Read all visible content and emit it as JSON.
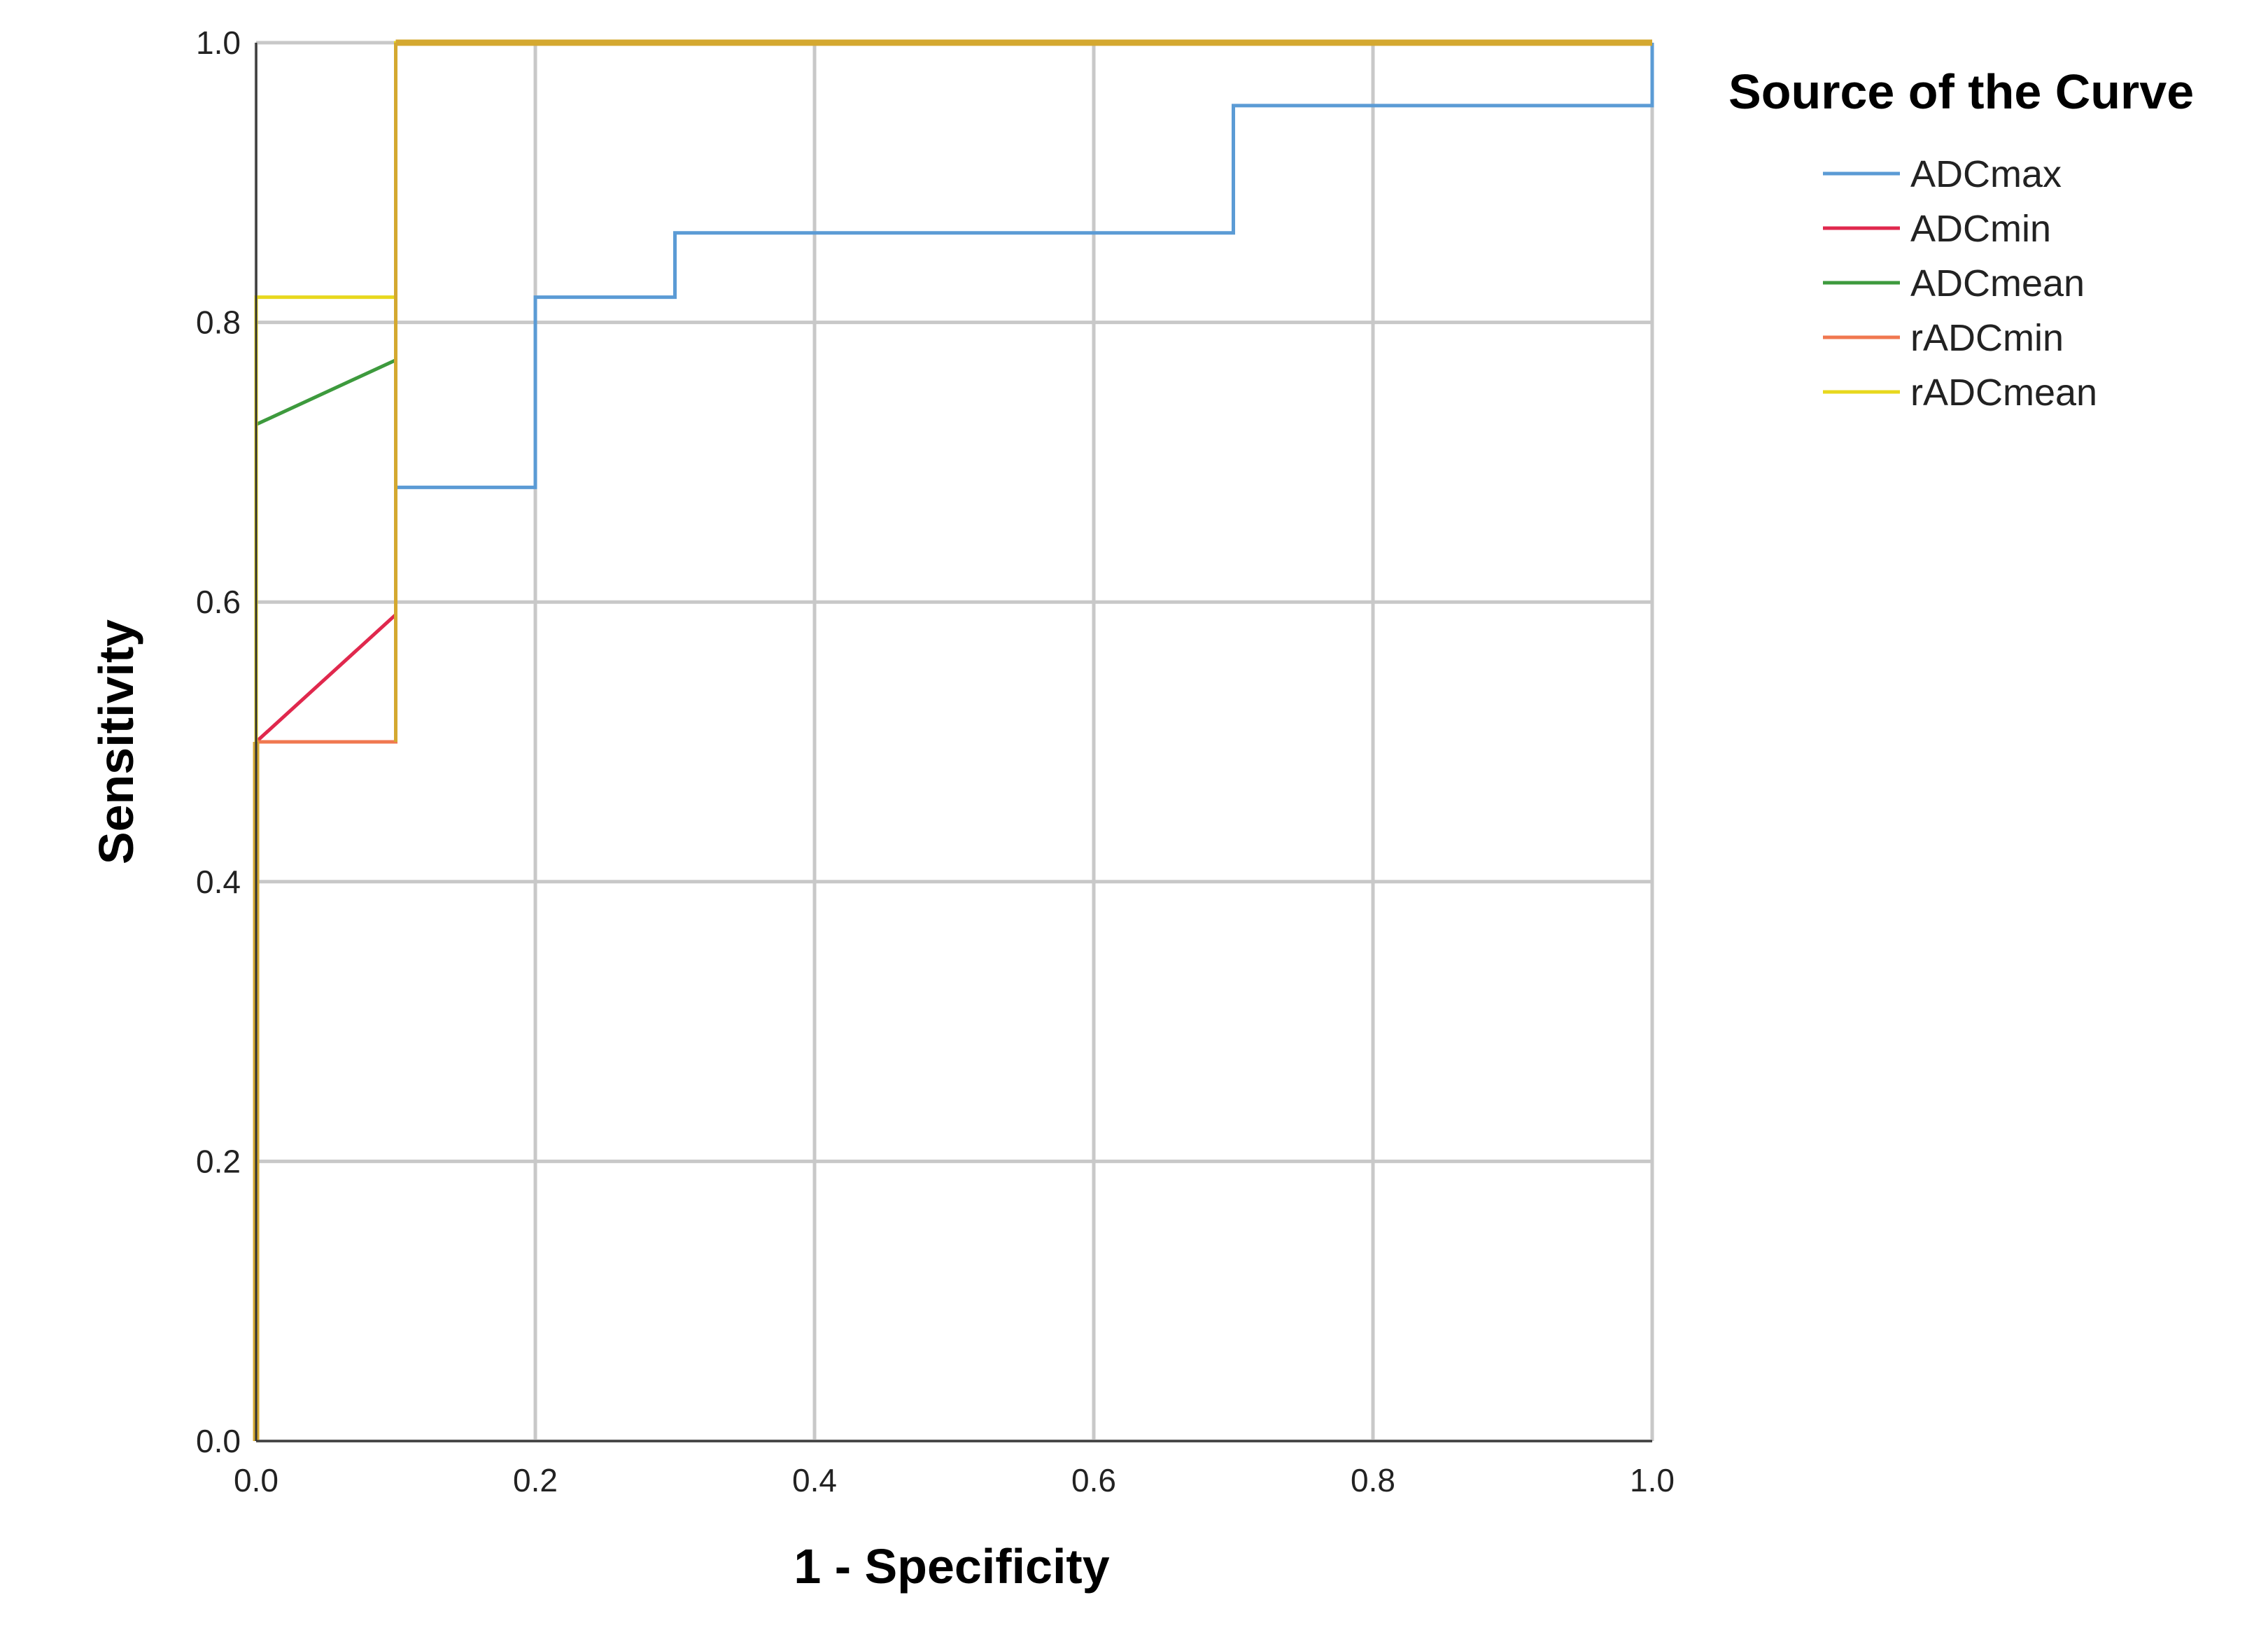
{
  "chart_data": {
    "type": "line",
    "xlabel": "1 - Specificity",
    "ylabel": "Sensitivity",
    "xlim": [
      0,
      1
    ],
    "ylim": [
      0,
      1
    ],
    "x_ticks": [
      "0.0",
      "0.2",
      "0.4",
      "0.6",
      "0.8",
      "1.0"
    ],
    "y_ticks": [
      "0.0",
      "0.2",
      "0.4",
      "0.6",
      "0.8",
      "1.0"
    ],
    "grid": true,
    "legend_title": "Source of the Curve",
    "legend_position": "right",
    "reference_line": true,
    "series": [
      {
        "name": "ADCmax",
        "color": "#5b9bd5",
        "x": [
          0.0,
          0.0,
          0.1,
          0.1,
          0.2,
          0.2,
          0.3,
          0.3,
          0.7,
          0.7,
          1.0,
          1.0
        ],
        "y": [
          0.0,
          0.5,
          0.5,
          0.682,
          0.682,
          0.818,
          0.818,
          0.864,
          0.864,
          0.955,
          0.955,
          1.0
        ]
      },
      {
        "name": "ADCmin",
        "color": "#e0284d",
        "x": [
          0.0,
          0.0,
          0.1,
          0.1,
          1.0
        ],
        "y": [
          0.0,
          0.5,
          0.591,
          1.0,
          1.0
        ]
      },
      {
        "name": "ADCmean",
        "color": "#3d9a3d",
        "x": [
          0.0,
          0.0,
          0.1,
          0.1,
          1.0
        ],
        "y": [
          0.0,
          0.727,
          0.773,
          1.0,
          1.0
        ]
      },
      {
        "name": "rADCmin",
        "color": "#f07850",
        "x": [
          0.0,
          0.0,
          0.1,
          0.1,
          1.0
        ],
        "y": [
          0.0,
          0.5,
          0.5,
          1.0,
          1.0
        ]
      },
      {
        "name": "rADCmean",
        "color": "#e8d81e",
        "x": [
          0.0,
          0.0,
          0.1,
          0.1,
          1.0
        ],
        "y": [
          0.0,
          0.818,
          0.818,
          1.0,
          1.0
        ]
      }
    ]
  },
  "colors": {
    "grid": "#c8c8c8",
    "reference": "#555555",
    "overlap": "#d4a830"
  }
}
